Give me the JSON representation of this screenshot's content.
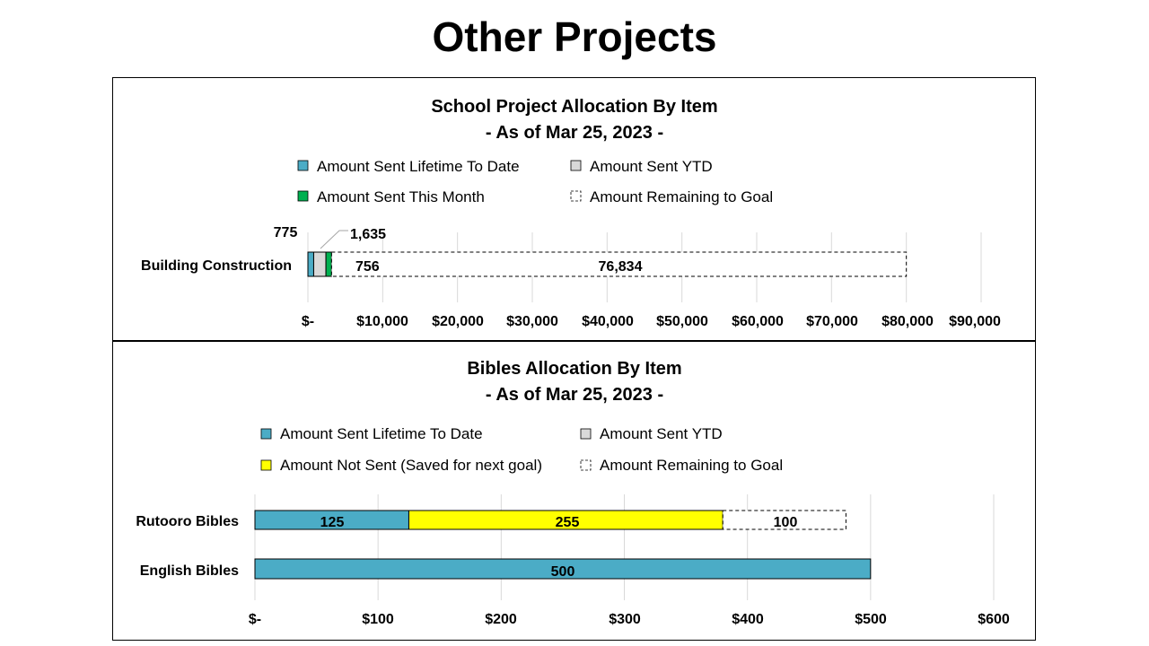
{
  "page": {
    "title": "Other Projects"
  },
  "chart_data": [
    {
      "type": "bar",
      "orientation": "horizontal",
      "stacked": true,
      "title": "School Project Allocation By Item",
      "subtitle": "- As of Mar 25, 2023 -",
      "categories": [
        "Building Construction"
      ],
      "series": [
        {
          "name": "Amount Sent Lifetime To Date",
          "values": [
            775
          ],
          "color": "#4BACC6",
          "style": "solid"
        },
        {
          "name": "Amount Sent YTD",
          "values": [
            1635
          ],
          "color": "#D9D9D9",
          "style": "solid"
        },
        {
          "name": "Amount Sent This Month",
          "values": [
            756
          ],
          "color": "#00B050",
          "style": "solid"
        },
        {
          "name": "Amount Remaining to Goal",
          "values": [
            76834
          ],
          "color": "#FFFFFF",
          "style": "dashed"
        }
      ],
      "data_labels": [
        "775",
        "1,635",
        "756",
        "76,834"
      ],
      "xlim": [
        0,
        90000
      ],
      "x_ticks": [
        0,
        10000,
        20000,
        30000,
        40000,
        50000,
        60000,
        70000,
        80000,
        90000
      ],
      "x_tick_labels": [
        "$-",
        "$10,000",
        "$20,000",
        "$30,000",
        "$40,000",
        "$50,000",
        "$60,000",
        "$70,000",
        "$80,000",
        "$90,000"
      ],
      "legend": "top"
    },
    {
      "type": "bar",
      "orientation": "horizontal",
      "stacked": true,
      "title": "Bibles Allocation By Item",
      "subtitle": "- As of Mar 25, 2023 -",
      "categories": [
        "Rutooro Bibles",
        "English Bibles"
      ],
      "series": [
        {
          "name": "Amount Sent Lifetime To Date",
          "values": [
            125,
            500
          ],
          "color": "#4BACC6",
          "style": "solid"
        },
        {
          "name": "Amount Sent YTD",
          "values": [
            0,
            0
          ],
          "color": "#D9D9D9",
          "style": "solid"
        },
        {
          "name": "Amount Not Sent (Saved for next goal)",
          "values": [
            255,
            0
          ],
          "color": "#FFFF00",
          "style": "solid"
        },
        {
          "name": "Amount Remaining to Goal",
          "values": [
            100,
            0
          ],
          "color": "#FFFFFF",
          "style": "dashed"
        }
      ],
      "data_labels": [
        [
          "125",
          "",
          "255",
          "100"
        ],
        [
          "500",
          "",
          "",
          ""
        ]
      ],
      "xlim": [
        0,
        600
      ],
      "x_ticks": [
        0,
        100,
        200,
        300,
        400,
        500,
        600
      ],
      "x_tick_labels": [
        "$-",
        "$100",
        "$200",
        "$300",
        "$400",
        "$500",
        "$600"
      ],
      "legend": "top"
    }
  ]
}
